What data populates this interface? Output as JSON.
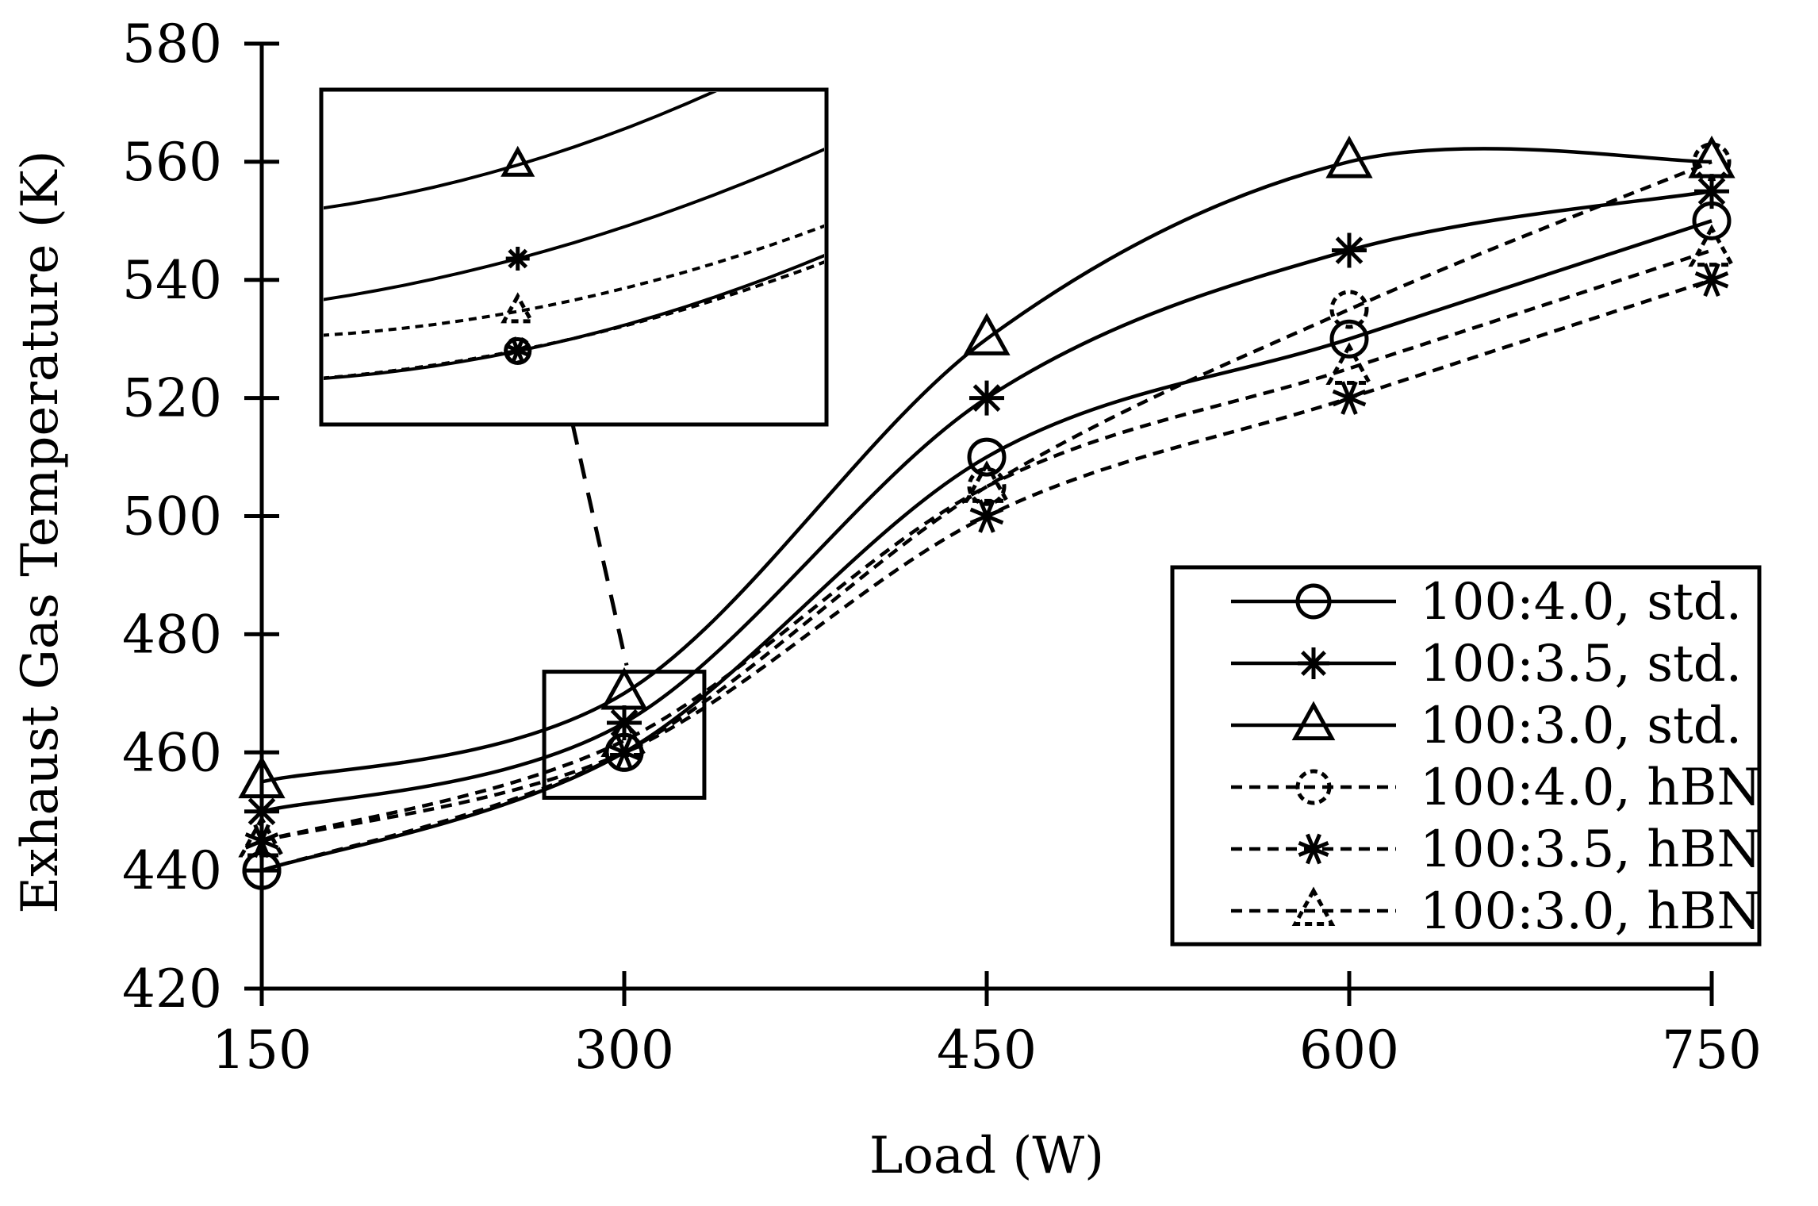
{
  "chart_data": {
    "type": "line",
    "title": "",
    "xlabel": "Load (W)",
    "ylabel": "Exhaust Gas Temperature (K)",
    "x": [
      150,
      300,
      450,
      600,
      750
    ],
    "xticks": [
      "150",
      "300",
      "450",
      "600",
      "750"
    ],
    "yticks": [
      "420",
      "440",
      "460",
      "480",
      "500",
      "520",
      "540",
      "560",
      "580"
    ],
    "xlim": [
      150,
      750
    ],
    "ylim": [
      420,
      580
    ],
    "grid": false,
    "legend_position": "bottom-right",
    "series": [
      {
        "name": "100:4.0, std.",
        "style": "solid",
        "marker": "circle",
        "values": [
          440,
          460,
          510,
          530,
          550
        ]
      },
      {
        "name": "100:3.5, std.",
        "style": "solid",
        "marker": "star",
        "values": [
          450,
          465,
          520,
          545,
          555
        ]
      },
      {
        "name": "100:3.0, std.",
        "style": "solid",
        "marker": "triangle",
        "values": [
          455,
          470,
          530,
          560,
          560
        ]
      },
      {
        "name": "100:4.0, hBN",
        "style": "dashed",
        "marker": "circle",
        "values": [
          440,
          460,
          505,
          535,
          560
        ]
      },
      {
        "name": "100:3.5, hBN",
        "style": "dashed",
        "marker": "star",
        "values": [
          445,
          460,
          500,
          520,
          540
        ]
      },
      {
        "name": "100:3.0, hBN",
        "style": "dashed",
        "marker": "triangle",
        "values": [
          445,
          462,
          505,
          525,
          545
        ]
      }
    ],
    "inset": {
      "description": "zoomed view of the 300 W data points",
      "x_range": [
        280,
        320
      ],
      "y_range": [
        455,
        475
      ]
    }
  }
}
